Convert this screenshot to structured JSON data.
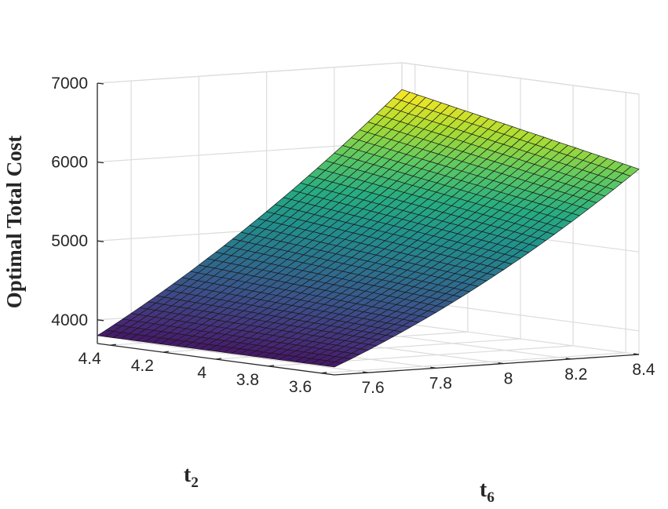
{
  "chart_data": {
    "type": "surface",
    "title": "",
    "xlabel": "t",
    "xlabel_sub": "6",
    "ylabel": "t",
    "ylabel_sub": "2",
    "zlabel": "Optimal Total Cost",
    "xlim": [
      7.5,
      8.4
    ],
    "ylim": [
      3.55,
      4.45
    ],
    "zlim": [
      3700,
      7000
    ],
    "x_ticks": [
      7.6,
      7.8,
      8,
      8.2,
      8.4
    ],
    "x_tick_labels": [
      "7.6",
      "7.8",
      "8",
      "8.2",
      "8.4"
    ],
    "y_ticks": [
      3.6,
      3.8,
      4,
      4.2,
      4.4
    ],
    "y_tick_labels": [
      "3.6",
      "3.8",
      "4",
      "4.2",
      "4.4"
    ],
    "z_ticks": [
      4000,
      5000,
      6000,
      7000
    ],
    "z_tick_labels": [
      "4000",
      "5000",
      "6000",
      "7000"
    ],
    "grid": true,
    "colormap": "viridis",
    "surface_corners": [
      {
        "t6": 7.5,
        "t2": 4.45,
        "cost": 3800
      },
      {
        "t6": 7.5,
        "t2": 3.55,
        "cost": 3800
      },
      {
        "t6": 8.4,
        "t2": 3.55,
        "cost": 6050
      },
      {
        "t6": 8.4,
        "t2": 4.45,
        "cost": 6660
      }
    ]
  }
}
